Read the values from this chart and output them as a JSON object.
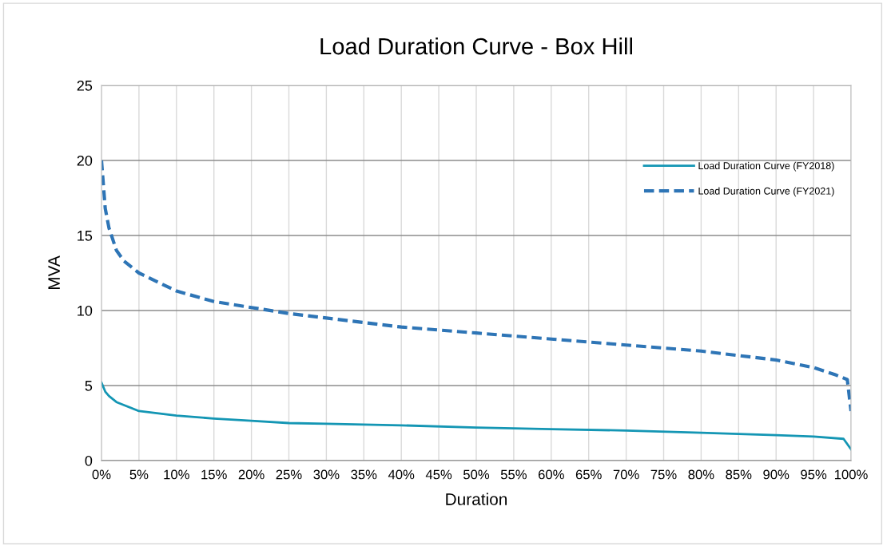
{
  "chart_data": {
    "type": "line",
    "title": "Load Duration Curve - Box Hill",
    "xlabel": "Duration",
    "ylabel": "MVA",
    "xlim": [
      0,
      100
    ],
    "ylim": [
      0,
      25
    ],
    "xticks": [
      {
        "value": 0,
        "label": "0%"
      },
      {
        "value": 5,
        "label": "5%"
      },
      {
        "value": 10,
        "label": "10%"
      },
      {
        "value": 15,
        "label": "15%"
      },
      {
        "value": 20,
        "label": "20%"
      },
      {
        "value": 25,
        "label": "25%"
      },
      {
        "value": 30,
        "label": "30%"
      },
      {
        "value": 35,
        "label": "35%"
      },
      {
        "value": 40,
        "label": "40%"
      },
      {
        "value": 45,
        "label": "45%"
      },
      {
        "value": 50,
        "label": "50%"
      },
      {
        "value": 55,
        "label": "55%"
      },
      {
        "value": 60,
        "label": "60%"
      },
      {
        "value": 65,
        "label": "65%"
      },
      {
        "value": 70,
        "label": "70%"
      },
      {
        "value": 75,
        "label": "75%"
      },
      {
        "value": 80,
        "label": "80%"
      },
      {
        "value": 85,
        "label": "85%"
      },
      {
        "value": 90,
        "label": "90%"
      },
      {
        "value": 95,
        "label": "95%"
      },
      {
        "value": 100,
        "label": "100%"
      }
    ],
    "yticks": [
      0,
      5,
      10,
      15,
      20,
      25
    ],
    "grid": true,
    "legend": "top right",
    "marker": "none",
    "series": [
      {
        "name": "Load Duration Curve (FY2018)",
        "color": "#1496b4",
        "line_style": "solid",
        "x": [
          0,
          0.5,
          1,
          2,
          3,
          5,
          10,
          15,
          20,
          25,
          30,
          40,
          50,
          60,
          70,
          80,
          90,
          95,
          99,
          100
        ],
        "values": [
          5.2,
          4.6,
          4.3,
          3.9,
          3.7,
          3.3,
          3.0,
          2.8,
          2.65,
          2.5,
          2.45,
          2.35,
          2.2,
          2.1,
          2.0,
          1.85,
          1.7,
          1.6,
          1.45,
          0.75
        ]
      },
      {
        "name": "Load Duration Curve (FY2021)",
        "color": "#2e75b6",
        "line_style": "dashed",
        "x": [
          0,
          0.5,
          1,
          2,
          3,
          5,
          10,
          15,
          20,
          25,
          30,
          35,
          40,
          45,
          50,
          55,
          60,
          65,
          70,
          75,
          80,
          85,
          90,
          95,
          98,
          99.5,
          100
        ],
        "values": [
          20,
          16.8,
          15.5,
          14,
          13.3,
          12.5,
          11.3,
          10.6,
          10.2,
          9.8,
          9.5,
          9.2,
          8.9,
          8.7,
          8.5,
          8.3,
          8.1,
          7.9,
          7.7,
          7.5,
          7.3,
          7.0,
          6.7,
          6.2,
          5.7,
          5.4,
          3.3
        ]
      }
    ]
  }
}
